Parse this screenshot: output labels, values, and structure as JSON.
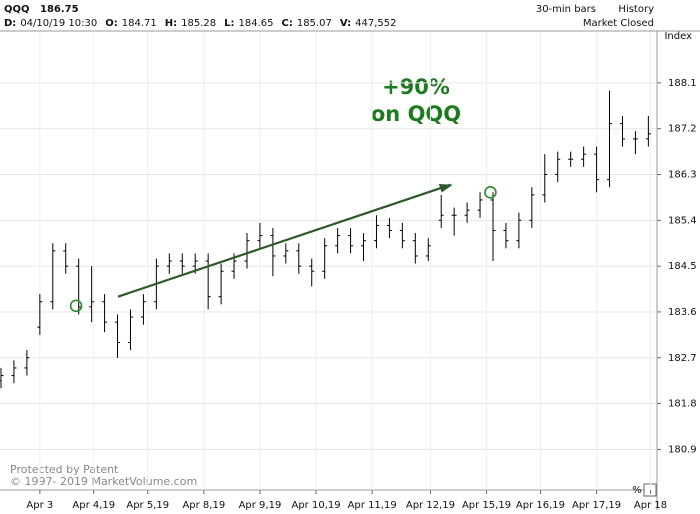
{
  "header": {
    "symbol": "QQQ",
    "last": 186.75,
    "stats": [
      {
        "label": "D:",
        "value": "04/10/19 10:30"
      },
      {
        "label": "O:",
        "value": 184.71
      },
      {
        "label": "H:",
        "value": 185.28
      },
      {
        "label": "L:",
        "value": 184.65
      },
      {
        "label": "C:",
        "value": 185.07
      },
      {
        "label": "V:",
        "value": "447,552"
      }
    ],
    "bar_setting": "30-min bars",
    "history": "History",
    "status": "Market Closed"
  },
  "watermark": [
    "Protected by Patent",
    "© 1997- 2019 MarketVolume.com"
  ],
  "percent_button": "%",
  "chart_data": {
    "type": "ohlc",
    "y_axis_label": "Index",
    "annotation": [
      "+90%",
      "on QQQ"
    ],
    "arrow": {
      "x": [
        27.1,
        104.2
      ],
      "y": [
        183.9,
        186.1
      ],
      "color": "#2d5a2d"
    },
    "markers": {
      "x": [
        17.4,
        113.4
      ],
      "y": [
        183.72,
        185.95
      ],
      "color": "#2e8b2e"
    },
    "xlim": [
      0,
      152
    ],
    "ylim": [
      180.2,
      189.1
    ],
    "xticks": [
      {
        "value": 9,
        "label": "Apr 3"
      },
      {
        "value": 21.5,
        "label": "Apr 4,19"
      },
      {
        "value": 34,
        "label": "Apr 5,19"
      },
      {
        "value": 47,
        "label": "Apr 8,19"
      },
      {
        "value": 60,
        "label": "Apr 9,19"
      },
      {
        "value": 73,
        "label": "Apr 10,19"
      },
      {
        "value": 86,
        "label": "Apr 11,19"
      },
      {
        "value": 99.5,
        "label": "Apr 12,19"
      },
      {
        "value": 112.5,
        "label": "Apr 15,19"
      },
      {
        "value": 125,
        "label": "Apr 16,19"
      },
      {
        "value": 138,
        "label": "Apr 17,19"
      },
      {
        "value": 150.5,
        "label": "Apr 18"
      }
    ],
    "yticks": [
      180.9,
      181.8,
      182.7,
      183.6,
      184.5,
      185.4,
      186.3,
      187.2,
      188.1
    ],
    "color": "#000000",
    "grid": true,
    "x": [
      0,
      3,
      6,
      9,
      12,
      15,
      18,
      21,
      24,
      27,
      30,
      33,
      36,
      39,
      42,
      45,
      48,
      51,
      54,
      57,
      60,
      63,
      66,
      69,
      72,
      75,
      78,
      81,
      84,
      87,
      90,
      93,
      96,
      99,
      102,
      105,
      108,
      111,
      114,
      117,
      120,
      123,
      126,
      129,
      132,
      135,
      138,
      141,
      144,
      147,
      150
    ],
    "open": [
      182.25,
      182.35,
      182.5,
      183.3,
      183.8,
      184.8,
      184.5,
      183.7,
      183.8,
      183.4,
      183.0,
      183.5,
      183.8,
      184.5,
      184.6,
      184.5,
      184.6,
      183.9,
      184.4,
      184.6,
      185.0,
      185.1,
      184.7,
      184.8,
      184.5,
      184.4,
      184.9,
      185.1,
      184.9,
      185.0,
      185.3,
      185.2,
      185.0,
      184.7,
      185.4,
      185.5,
      185.5,
      185.6,
      185.8,
      185.2,
      185.0,
      185.4,
      185.9,
      186.3,
      186.6,
      186.6,
      186.7,
      186.2,
      187.3,
      187.0,
      187.0
    ],
    "high": [
      182.5,
      182.65,
      182.85,
      183.95,
      184.95,
      184.95,
      184.65,
      184.5,
      183.95,
      183.55,
      183.65,
      183.95,
      184.65,
      184.75,
      184.75,
      184.75,
      184.75,
      184.55,
      184.75,
      185.15,
      185.35,
      185.25,
      184.95,
      184.95,
      184.65,
      185.05,
      185.25,
      185.25,
      185.15,
      185.5,
      185.45,
      185.35,
      185.15,
      185.05,
      185.9,
      185.65,
      185.75,
      185.95,
      185.95,
      185.35,
      185.55,
      186.05,
      186.7,
      186.75,
      186.75,
      186.85,
      186.85,
      187.95,
      187.45,
      187.15,
      187.45
    ],
    "low": [
      182.1,
      182.2,
      182.35,
      183.15,
      183.65,
      184.35,
      183.55,
      183.4,
      183.2,
      182.7,
      182.85,
      183.35,
      183.65,
      184.35,
      184.35,
      184.35,
      183.65,
      183.75,
      184.25,
      184.45,
      184.85,
      184.3,
      184.55,
      184.35,
      184.1,
      184.25,
      184.75,
      184.75,
      184.6,
      184.85,
      185.05,
      184.85,
      184.55,
      184.6,
      185.25,
      185.1,
      185.35,
      185.45,
      184.6,
      184.85,
      184.85,
      185.25,
      185.75,
      186.15,
      186.45,
      186.45,
      185.95,
      186.05,
      186.85,
      186.7,
      186.85
    ],
    "close": [
      182.35,
      182.5,
      182.7,
      183.8,
      184.8,
      184.5,
      183.7,
      183.8,
      183.4,
      183.0,
      183.5,
      183.8,
      184.5,
      184.6,
      184.5,
      184.6,
      183.9,
      184.4,
      184.6,
      185.0,
      185.1,
      184.7,
      184.8,
      184.5,
      184.4,
      184.9,
      185.1,
      184.9,
      185.0,
      185.3,
      185.2,
      185.0,
      184.7,
      184.9,
      185.5,
      185.5,
      185.6,
      185.8,
      185.2,
      185.0,
      185.4,
      185.9,
      186.3,
      186.6,
      186.6,
      186.7,
      186.2,
      187.3,
      187.0,
      187.0,
      187.1
    ]
  }
}
